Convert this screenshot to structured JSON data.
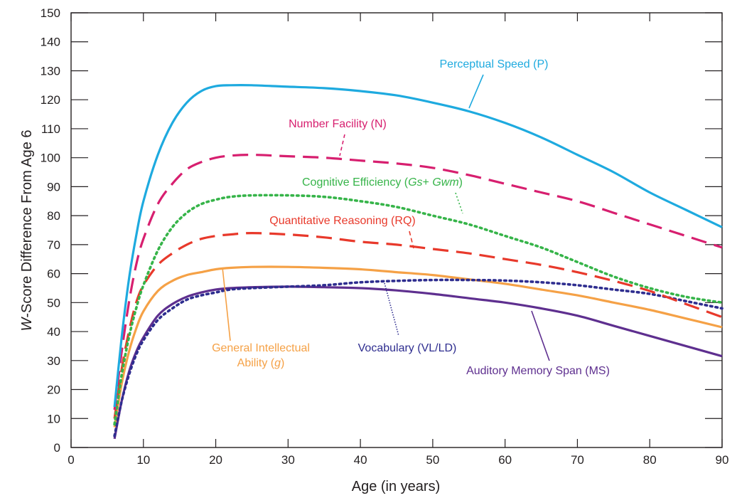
{
  "chart_data": {
    "type": "line",
    "title": "",
    "xlabel": "Age (in years)",
    "ylabel": "W-Score Difference From Age 6",
    "ylabel_parts": [
      "W",
      "-Score Difference From Age 6"
    ],
    "xlim": [
      0,
      90
    ],
    "ylim": [
      0,
      150
    ],
    "x_ticks": [
      0,
      10,
      20,
      30,
      40,
      50,
      60,
      70,
      80,
      90
    ],
    "y_ticks": [
      0,
      10,
      20,
      30,
      40,
      50,
      60,
      70,
      80,
      90,
      100,
      110,
      120,
      130,
      140,
      150
    ],
    "grid": false,
    "legend": "inline labels with leader lines",
    "series": [
      {
        "name": "Perceptual Speed (P)",
        "label_parts": [
          {
            "t": "Perceptual Speed (P)"
          }
        ],
        "color": "#1eaadf",
        "style": "solid",
        "x": [
          6,
          7,
          8,
          9,
          10,
          12,
          14,
          16,
          18,
          20,
          22,
          25,
          30,
          35,
          40,
          45,
          50,
          55,
          60,
          65,
          70,
          75,
          80,
          85,
          90
        ],
        "y": [
          14,
          38,
          58,
          73,
          85,
          101,
          112,
          119,
          123,
          124.7,
          125,
          125,
          124.5,
          124,
          123,
          121.5,
          119,
          116,
          112,
          107,
          101,
          95,
          88,
          82,
          76
        ]
      },
      {
        "name": "Number Facility (N)",
        "label_parts": [
          {
            "t": "Number Facility (N)"
          }
        ],
        "color": "#d71f6f",
        "style": "dashed",
        "x": [
          6,
          7,
          8,
          9,
          10,
          12,
          14,
          16,
          18,
          20,
          22,
          25,
          30,
          35,
          40,
          45,
          50,
          55,
          60,
          65,
          70,
          75,
          80,
          85,
          90
        ],
        "y": [
          13,
          33,
          50,
          63,
          72,
          84,
          91,
          96,
          98.5,
          100,
          100.7,
          101,
          100.5,
          100,
          99,
          98,
          96.5,
          94,
          91,
          88,
          85,
          81,
          77,
          73,
          69
        ]
      },
      {
        "name": "Cognitive Efficiency (Gs+ Gwm)",
        "label_parts": [
          {
            "t": "Cognitive Efficiency ("
          },
          {
            "t": "Gs",
            "i": true
          },
          {
            "t": "+ "
          },
          {
            "t": "Gwm",
            "i": true
          },
          {
            "t": ")"
          }
        ],
        "color": "#36b449",
        "style": "dotted",
        "x": [
          6,
          7,
          8,
          9,
          10,
          12,
          14,
          16,
          18,
          20,
          22,
          25,
          30,
          35,
          40,
          45,
          50,
          55,
          60,
          65,
          70,
          75,
          80,
          85,
          90
        ],
        "y": [
          8,
          25,
          38,
          48,
          56,
          68,
          76,
          81,
          84,
          85.5,
          86.5,
          87,
          87,
          86.5,
          85,
          83,
          80,
          77,
          73,
          69,
          64,
          59,
          55,
          52,
          50
        ]
      },
      {
        "name": "Quantitative Reasoning (RQ)",
        "label_parts": [
          {
            "t": "Quantitative Reasoning (RQ)"
          }
        ],
        "color": "#e8392b",
        "style": "dashed",
        "x": [
          6,
          7,
          8,
          9,
          10,
          12,
          14,
          16,
          18,
          20,
          22,
          25,
          30,
          35,
          40,
          45,
          50,
          55,
          60,
          65,
          70,
          75,
          80,
          85,
          90
        ],
        "y": [
          10,
          27,
          40,
          50,
          56,
          63,
          67,
          70,
          72,
          73,
          73.5,
          74,
          73.5,
          72.5,
          71,
          70,
          68.5,
          67,
          65,
          63,
          60.5,
          57.5,
          54,
          49.5,
          45
        ]
      },
      {
        "name": "General Intellectual Ability (g)",
        "label_parts": [
          {
            "t": "General Intellectual"
          },
          {
            "t": "Ability (",
            "br": true
          },
          {
            "t": "g",
            "i": true
          },
          {
            "t": ")"
          }
        ],
        "color": "#f5a146",
        "style": "solid",
        "x": [
          6,
          7,
          8,
          9,
          10,
          12,
          14,
          16,
          18,
          20,
          22,
          25,
          30,
          35,
          40,
          45,
          50,
          55,
          60,
          65,
          70,
          75,
          80,
          85,
          90
        ],
        "y": [
          7,
          22,
          33,
          41,
          47,
          54,
          57.5,
          59.5,
          60.5,
          61.5,
          62,
          62.3,
          62.3,
          62,
          61.5,
          60.5,
          59.5,
          58,
          56.5,
          54.5,
          52.5,
          50,
          47.5,
          44.5,
          41.5
        ]
      },
      {
        "name": "Vocabulary (VL/LD)",
        "label_parts": [
          {
            "t": "Vocabulary (VL/LD)"
          }
        ],
        "color": "#2e2d8f",
        "style": "dotted",
        "x": [
          6,
          7,
          8,
          9,
          10,
          12,
          14,
          16,
          18,
          20,
          22,
          25,
          30,
          35,
          40,
          45,
          50,
          55,
          60,
          65,
          70,
          75,
          80,
          85,
          90
        ],
        "y": [
          4,
          16,
          25,
          32,
          37,
          44,
          48,
          51,
          52.5,
          53.5,
          54.5,
          55,
          55.5,
          56,
          57,
          57.5,
          57.8,
          57.8,
          57.6,
          57,
          56,
          54.5,
          53,
          50.5,
          48
        ]
      },
      {
        "name": "Auditory Memory Span (MS)",
        "label_parts": [
          {
            "t": "Auditory Memory Span (MS)"
          }
        ],
        "color": "#5e2f8f",
        "style": "solid",
        "x": [
          6,
          7,
          8,
          9,
          10,
          12,
          14,
          16,
          18,
          20,
          22,
          25,
          30,
          35,
          40,
          45,
          50,
          55,
          60,
          65,
          70,
          75,
          80,
          85,
          90
        ],
        "y": [
          3,
          16,
          26,
          33,
          38,
          45.5,
          49.5,
          52,
          53.5,
          54.5,
          55,
          55.3,
          55.5,
          55.3,
          55,
          54.2,
          53,
          51.5,
          50,
          48,
          45.5,
          42,
          38.5,
          35,
          31.5
        ]
      }
    ]
  }
}
